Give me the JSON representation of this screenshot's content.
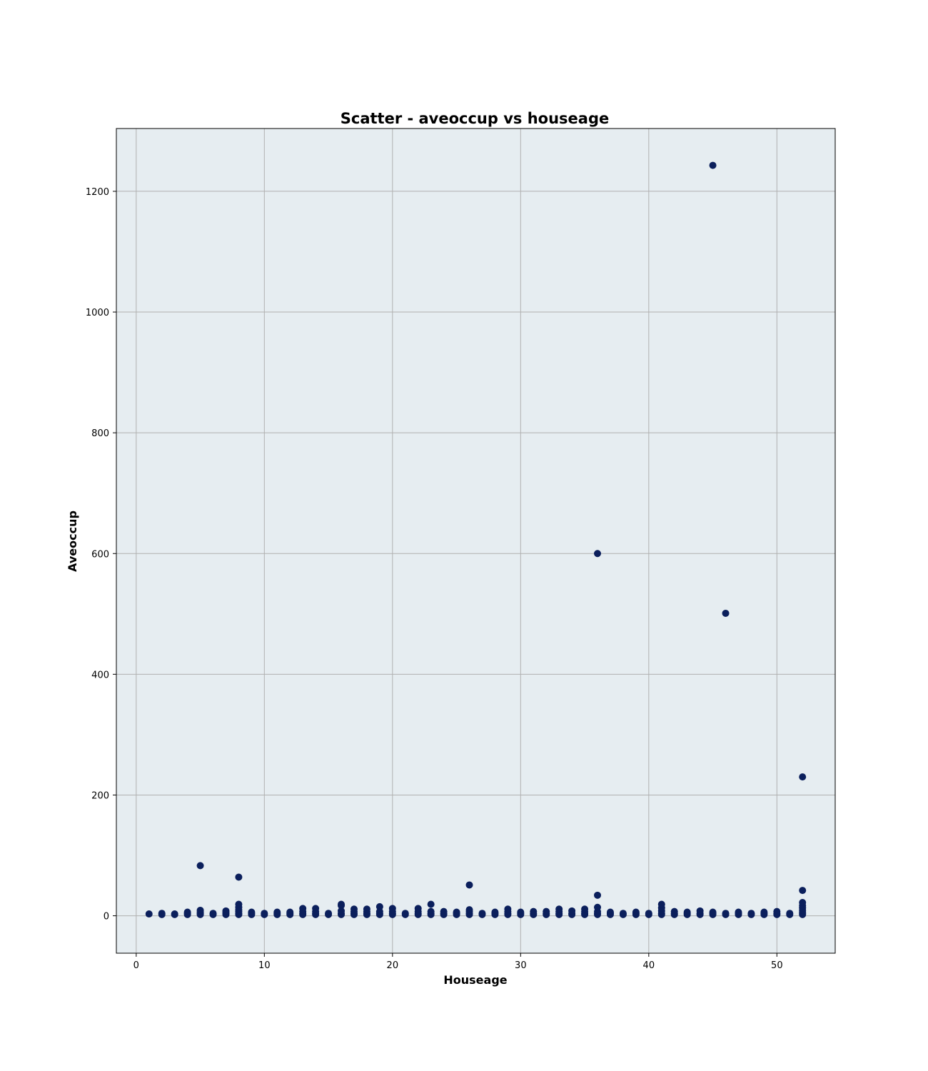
{
  "chart_data": {
    "type": "scatter",
    "title": "Scatter - aveoccup vs houseage",
    "xlabel": "Houseage",
    "ylabel": "Aveoccup",
    "xlim": [
      -1.55,
      54.55
    ],
    "ylim": [
      -62,
      1304
    ],
    "xticks": [
      0,
      10,
      20,
      30,
      40,
      50
    ],
    "yticks": [
      0,
      200,
      400,
      600,
      800,
      1000,
      1200
    ],
    "grid": true,
    "colors": {
      "marker": "#0b1f5c",
      "plot_background": "#e6edf1",
      "grid": "#b0b0b0"
    },
    "points": [
      [
        1,
        3
      ],
      [
        2,
        2
      ],
      [
        2,
        4
      ],
      [
        3,
        2
      ],
      [
        3,
        3
      ],
      [
        4,
        2
      ],
      [
        4,
        4
      ],
      [
        4,
        6
      ],
      [
        5,
        2
      ],
      [
        5,
        4
      ],
      [
        5,
        6
      ],
      [
        5,
        9
      ],
      [
        5,
        83
      ],
      [
        6,
        2
      ],
      [
        6,
        4
      ],
      [
        7,
        2
      ],
      [
        7,
        4
      ],
      [
        7,
        6
      ],
      [
        7,
        8
      ],
      [
        8,
        2
      ],
      [
        8,
        4
      ],
      [
        8,
        7
      ],
      [
        8,
        10
      ],
      [
        8,
        14
      ],
      [
        8,
        19
      ],
      [
        8,
        64
      ],
      [
        9,
        2
      ],
      [
        9,
        4
      ],
      [
        9,
        6
      ],
      [
        10,
        2
      ],
      [
        10,
        4
      ],
      [
        11,
        2
      ],
      [
        11,
        4
      ],
      [
        11,
        6
      ],
      [
        12,
        2
      ],
      [
        12,
        4
      ],
      [
        12,
        6
      ],
      [
        13,
        2
      ],
      [
        13,
        4
      ],
      [
        13,
        7
      ],
      [
        13,
        12
      ],
      [
        14,
        2
      ],
      [
        14,
        4
      ],
      [
        14,
        7
      ],
      [
        14,
        12
      ],
      [
        15,
        2
      ],
      [
        15,
        4
      ],
      [
        16,
        2
      ],
      [
        16,
        4
      ],
      [
        16,
        8
      ],
      [
        16,
        17
      ],
      [
        16,
        19
      ],
      [
        17,
        2
      ],
      [
        17,
        4
      ],
      [
        17,
        7
      ],
      [
        17,
        11
      ],
      [
        18,
        2
      ],
      [
        18,
        4
      ],
      [
        18,
        7
      ],
      [
        18,
        11
      ],
      [
        19,
        2
      ],
      [
        19,
        4
      ],
      [
        19,
        7
      ],
      [
        19,
        15
      ],
      [
        20,
        2
      ],
      [
        20,
        4
      ],
      [
        20,
        7
      ],
      [
        20,
        12
      ],
      [
        21,
        2
      ],
      [
        21,
        4
      ],
      [
        22,
        2
      ],
      [
        22,
        4
      ],
      [
        22,
        7
      ],
      [
        22,
        12
      ],
      [
        23,
        2
      ],
      [
        23,
        4
      ],
      [
        23,
        7
      ],
      [
        23,
        19
      ],
      [
        24,
        2
      ],
      [
        24,
        4
      ],
      [
        24,
        7
      ],
      [
        25,
        2
      ],
      [
        25,
        4
      ],
      [
        25,
        6
      ],
      [
        26,
        2
      ],
      [
        26,
        4
      ],
      [
        26,
        7
      ],
      [
        26,
        10
      ],
      [
        26,
        51
      ],
      [
        27,
        2
      ],
      [
        27,
        4
      ],
      [
        28,
        2
      ],
      [
        28,
        4
      ],
      [
        28,
        6
      ],
      [
        29,
        2
      ],
      [
        29,
        4
      ],
      [
        29,
        7
      ],
      [
        29,
        11
      ],
      [
        30,
        2
      ],
      [
        30,
        4
      ],
      [
        30,
        6
      ],
      [
        31,
        2
      ],
      [
        31,
        4
      ],
      [
        31,
        7
      ],
      [
        32,
        2
      ],
      [
        32,
        4
      ],
      [
        32,
        7
      ],
      [
        33,
        2
      ],
      [
        33,
        4
      ],
      [
        33,
        7
      ],
      [
        33,
        11
      ],
      [
        34,
        2
      ],
      [
        34,
        4
      ],
      [
        34,
        8
      ],
      [
        35,
        2
      ],
      [
        35,
        4
      ],
      [
        35,
        7
      ],
      [
        35,
        11
      ],
      [
        36,
        2
      ],
      [
        36,
        4
      ],
      [
        36,
        7
      ],
      [
        36,
        14
      ],
      [
        36,
        34
      ],
      [
        36,
        600
      ],
      [
        37,
        2
      ],
      [
        37,
        4
      ],
      [
        37,
        6
      ],
      [
        38,
        2
      ],
      [
        38,
        4
      ],
      [
        39,
        2
      ],
      [
        39,
        4
      ],
      [
        39,
        6
      ],
      [
        40,
        2
      ],
      [
        40,
        4
      ],
      [
        41,
        2
      ],
      [
        41,
        4
      ],
      [
        41,
        8
      ],
      [
        41,
        13
      ],
      [
        41,
        19
      ],
      [
        42,
        2
      ],
      [
        42,
        4
      ],
      [
        42,
        7
      ],
      [
        43,
        2
      ],
      [
        43,
        4
      ],
      [
        43,
        6
      ],
      [
        44,
        2
      ],
      [
        44,
        4
      ],
      [
        44,
        8
      ],
      [
        45,
        2
      ],
      [
        45,
        4
      ],
      [
        45,
        6
      ],
      [
        45,
        1243
      ],
      [
        46,
        2
      ],
      [
        46,
        4
      ],
      [
        46,
        501
      ],
      [
        47,
        2
      ],
      [
        47,
        4
      ],
      [
        47,
        6
      ],
      [
        48,
        2
      ],
      [
        48,
        4
      ],
      [
        49,
        2
      ],
      [
        49,
        4
      ],
      [
        49,
        6
      ],
      [
        50,
        2
      ],
      [
        50,
        4
      ],
      [
        50,
        7
      ],
      [
        51,
        2
      ],
      [
        51,
        4
      ],
      [
        52,
        2
      ],
      [
        52,
        4
      ],
      [
        52,
        6
      ],
      [
        52,
        9
      ],
      [
        52,
        13
      ],
      [
        52,
        17
      ],
      [
        52,
        22
      ],
      [
        52,
        42
      ],
      [
        52,
        230
      ]
    ]
  }
}
